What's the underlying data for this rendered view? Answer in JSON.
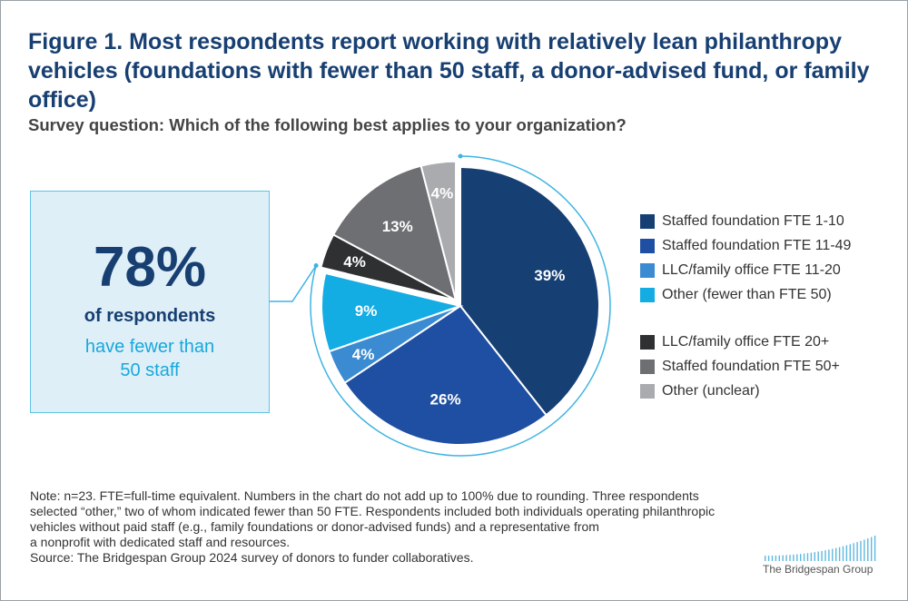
{
  "figure": {
    "title": "Figure 1. Most respondents report working with relatively lean philanthropy vehicles (foundations with fewer than 50 staff, a donor-advised fund, or family office)",
    "subtitle": "Survey question: Which of the following best applies to your organization?"
  },
  "callout": {
    "big_number": "78%",
    "line1": "of respondents",
    "line2a": "have fewer than",
    "line2b": "50 staff"
  },
  "chart_data": {
    "type": "pie",
    "slices": [
      {
        "label": "Staffed foundation FTE 1-10",
        "value": 39,
        "display": "39%",
        "color": "#163f73"
      },
      {
        "label": "Staffed foundation FTE 11-49",
        "value": 26,
        "display": "26%",
        "color": "#1f4fa2"
      },
      {
        "label": "LLC/family office FTE 11-20",
        "value": 4,
        "display": "4%",
        "color": "#3a8bd1"
      },
      {
        "label": "Other (fewer than FTE 50)",
        "value": 9,
        "display": "9%",
        "color": "#13ace3"
      },
      {
        "label": "LLC/family office FTE 20+",
        "value": 4,
        "display": "4%",
        "color": "#2e3032"
      },
      {
        "label": "Staffed foundation FTE 50+",
        "value": 13,
        "display": "13%",
        "color": "#6e6f72"
      },
      {
        "label": "Other (unclear)",
        "value": 4,
        "display": "4%",
        "color": "#a9abae"
      }
    ],
    "highlighted_group_share": "78%"
  },
  "legend": {
    "group1": [
      {
        "label": "Staffed foundation FTE 1-10",
        "color": "#163f73"
      },
      {
        "label": "Staffed foundation FTE 11-49",
        "color": "#1f4fa2"
      },
      {
        "label": "LLC/family office FTE 11-20",
        "color": "#3a8bd1"
      },
      {
        "label": "Other (fewer than FTE 50)",
        "color": "#13ace3"
      }
    ],
    "group2": [
      {
        "label": "LLC/family office FTE 20+",
        "color": "#2e3032"
      },
      {
        "label": "Staffed foundation FTE 50+",
        "color": "#6e6f72"
      },
      {
        "label": "Other (unclear)",
        "color": "#a9abae"
      }
    ]
  },
  "footnote": {
    "line1": "Note: n=23. FTE=full-time equivalent. Numbers in the chart do not add up to 100% due to rounding. Three respondents",
    "line2": "selected “other,” two of whom indicated fewer than 50 FTE. Respondents included both individuals operating philanthropic",
    "line3": "vehicles without paid staff (e.g., family foundations or donor-advised funds) and a representative from",
    "line4": "a nonprofit with dedicated staff and resources.",
    "source": "Source: The Bridgespan Group 2024 survey of donors to funder collaboratives."
  },
  "logo": {
    "text": "The Bridgespan Group",
    "bar_color": "#5fb8e0"
  }
}
